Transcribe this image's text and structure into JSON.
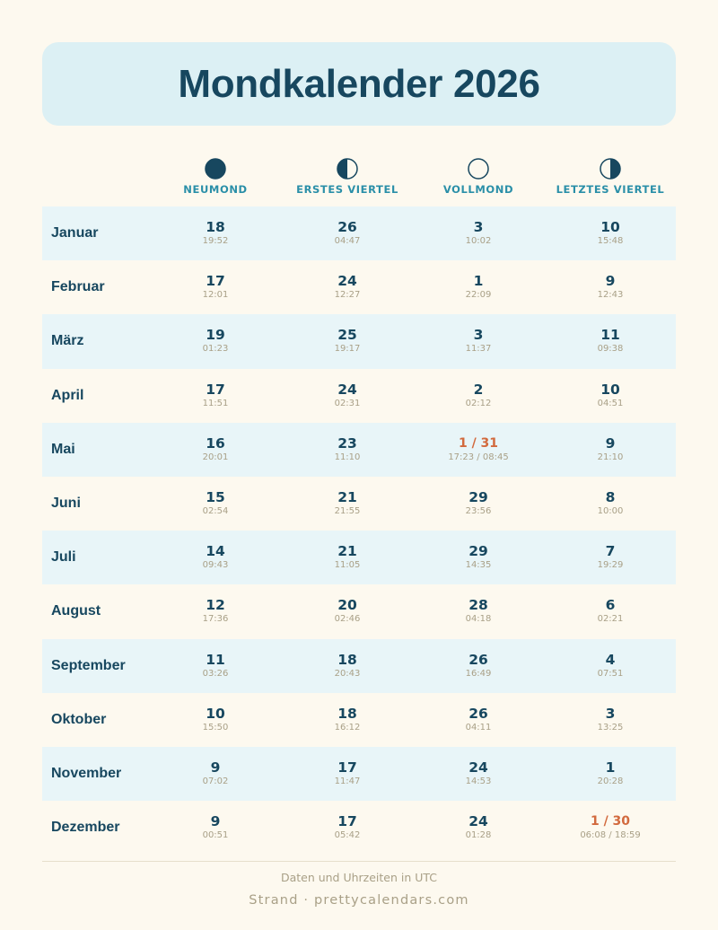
{
  "title": "Mondkalender 2026",
  "colors": {
    "background": "#fdf9ef",
    "title_box": "#dcf0f4",
    "primary": "#17475f",
    "accent": "#2a8fa8",
    "highlight": "#d26a3e",
    "muted": "#a9a087",
    "row_shade": "#e8f5f8"
  },
  "phases": [
    {
      "label": "NEUMOND",
      "icon": "new-moon-icon"
    },
    {
      "label": "ERSTES VIERTEL",
      "icon": "first-quarter-icon"
    },
    {
      "label": "VOLLMOND",
      "icon": "full-moon-icon"
    },
    {
      "label": "LETZTES VIERTEL",
      "icon": "last-quarter-icon"
    }
  ],
  "months": [
    {
      "name": "Januar",
      "cells": [
        {
          "day": "18",
          "time": "19:52"
        },
        {
          "day": "26",
          "time": "04:47"
        },
        {
          "day": "3",
          "time": "10:02"
        },
        {
          "day": "10",
          "time": "15:48"
        }
      ]
    },
    {
      "name": "Februar",
      "cells": [
        {
          "day": "17",
          "time": "12:01"
        },
        {
          "day": "24",
          "time": "12:27"
        },
        {
          "day": "1",
          "time": "22:09"
        },
        {
          "day": "9",
          "time": "12:43"
        }
      ]
    },
    {
      "name": "März",
      "cells": [
        {
          "day": "19",
          "time": "01:23"
        },
        {
          "day": "25",
          "time": "19:17"
        },
        {
          "day": "3",
          "time": "11:37"
        },
        {
          "day": "11",
          "time": "09:38"
        }
      ]
    },
    {
      "name": "April",
      "cells": [
        {
          "day": "17",
          "time": "11:51"
        },
        {
          "day": "24",
          "time": "02:31"
        },
        {
          "day": "2",
          "time": "02:12"
        },
        {
          "day": "10",
          "time": "04:51"
        }
      ]
    },
    {
      "name": "Mai",
      "cells": [
        {
          "day": "16",
          "time": "20:01"
        },
        {
          "day": "23",
          "time": "11:10"
        },
        {
          "day": "1 / 31",
          "time": "17:23 / 08:45",
          "highlight": true
        },
        {
          "day": "9",
          "time": "21:10"
        }
      ]
    },
    {
      "name": "Juni",
      "cells": [
        {
          "day": "15",
          "time": "02:54"
        },
        {
          "day": "21",
          "time": "21:55"
        },
        {
          "day": "29",
          "time": "23:56"
        },
        {
          "day": "8",
          "time": "10:00"
        }
      ]
    },
    {
      "name": "Juli",
      "cells": [
        {
          "day": "14",
          "time": "09:43"
        },
        {
          "day": "21",
          "time": "11:05"
        },
        {
          "day": "29",
          "time": "14:35"
        },
        {
          "day": "7",
          "time": "19:29"
        }
      ]
    },
    {
      "name": "August",
      "cells": [
        {
          "day": "12",
          "time": "17:36"
        },
        {
          "day": "20",
          "time": "02:46"
        },
        {
          "day": "28",
          "time": "04:18"
        },
        {
          "day": "6",
          "time": "02:21"
        }
      ]
    },
    {
      "name": "September",
      "cells": [
        {
          "day": "11",
          "time": "03:26"
        },
        {
          "day": "18",
          "time": "20:43"
        },
        {
          "day": "26",
          "time": "16:49"
        },
        {
          "day": "4",
          "time": "07:51"
        }
      ]
    },
    {
      "name": "Oktober",
      "cells": [
        {
          "day": "10",
          "time": "15:50"
        },
        {
          "day": "18",
          "time": "16:12"
        },
        {
          "day": "26",
          "time": "04:11"
        },
        {
          "day": "3",
          "time": "13:25"
        }
      ]
    },
    {
      "name": "November",
      "cells": [
        {
          "day": "9",
          "time": "07:02"
        },
        {
          "day": "17",
          "time": "11:47"
        },
        {
          "day": "24",
          "time": "14:53"
        },
        {
          "day": "1",
          "time": "20:28"
        }
      ]
    },
    {
      "name": "Dezember",
      "cells": [
        {
          "day": "9",
          "time": "00:51"
        },
        {
          "day": "17",
          "time": "05:42"
        },
        {
          "day": "24",
          "time": "01:28"
        },
        {
          "day": "1 / 30",
          "time": "06:08 / 18:59",
          "highlight": true
        }
      ]
    }
  ],
  "footer": {
    "note": "Daten und Uhrzeiten in UTC",
    "brand": "Strand · prettycalendars.com"
  }
}
